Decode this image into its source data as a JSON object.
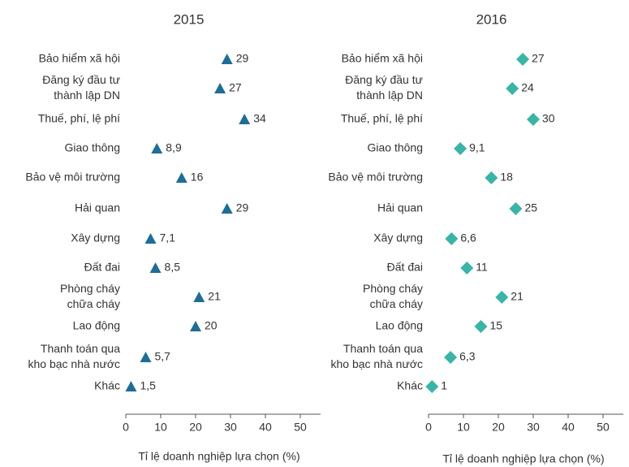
{
  "chart_data": [
    {
      "type": "dot",
      "title": "2015",
      "marker": "triangle",
      "color": "#1f6d94",
      "categories": [
        [
          "Bảo hiểm xã hội"
        ],
        [
          "Đăng ký đầu tư",
          "thành lập DN"
        ],
        [
          "Thuế, phí, lệ phí"
        ],
        [
          "Giao thông"
        ],
        [
          "Bảo vệ môi trường"
        ],
        [
          "Hải quan"
        ],
        [
          "Xây dựng"
        ],
        [
          "Đất đai"
        ],
        [
          "Phòng cháy",
          "chữa cháy"
        ],
        [
          "Lao động"
        ],
        [
          "Thanh toán qua",
          "kho bạc nhà nước"
        ],
        [
          "Khác"
        ]
      ],
      "values": [
        29,
        27,
        34,
        8.9,
        16,
        29,
        7.1,
        8.5,
        21,
        20,
        5.7,
        1.5
      ],
      "value_labels": [
        "29",
        "27",
        "34",
        "8,9",
        "16",
        "29",
        "7,1",
        "8,5",
        "21",
        "20",
        "5,7",
        "1,5"
      ],
      "xlim": [
        0,
        50
      ],
      "xticks": [
        0,
        10,
        20,
        30,
        40,
        50
      ],
      "xlabel": "Tỉ lệ doanh nghiệp lựa chọn (%)"
    },
    {
      "type": "dot",
      "title": "2016",
      "marker": "diamond",
      "color": "#3ab4a6",
      "categories": [
        [
          "Bảo hiểm xã hội"
        ],
        [
          "Đăng ký đầu tư",
          "thành lập DN"
        ],
        [
          "Thuế, phí, lệ phí"
        ],
        [
          "Giao thông"
        ],
        [
          "Bảo vệ môi trường"
        ],
        [
          "Hải quan"
        ],
        [
          "Xây dựng"
        ],
        [
          "Đất đai"
        ],
        [
          "Phòng cháy",
          "chữa cháy"
        ],
        [
          "Lao động"
        ],
        [
          "Thanh toán qua",
          "kho bạc nhà nước"
        ],
        [
          "Khác"
        ]
      ],
      "values": [
        27,
        24,
        30,
        9.1,
        18,
        25,
        6.6,
        11,
        21,
        15,
        6.3,
        1
      ],
      "value_labels": [
        "27",
        "24",
        "30",
        "9,1",
        "18",
        "25",
        "6,6",
        "11",
        "21",
        "15",
        "6,3",
        "1"
      ],
      "xlim": [
        0,
        50
      ],
      "xticks": [
        0,
        10,
        20,
        30,
        40,
        50
      ],
      "xlabel": "Tỉ lệ doanh nghiệp lựa chọn (%)"
    }
  ]
}
